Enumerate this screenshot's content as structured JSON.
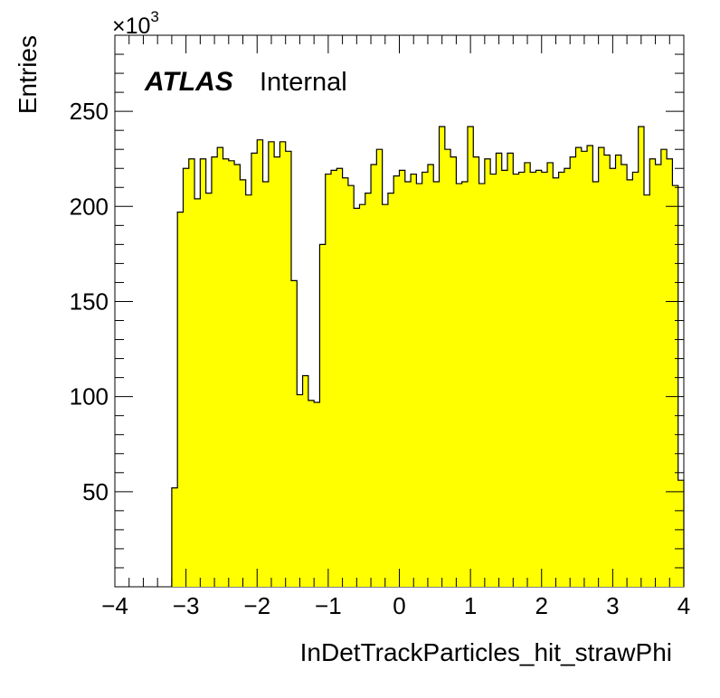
{
  "chart_data": {
    "type": "bar",
    "histogram": true,
    "xlabel": "InDetTrackParticles_hit_strawPhi",
    "ylabel": "Entries",
    "y_scale_label": {
      "base": "×10",
      "exponent": "3"
    },
    "annotation": {
      "bold": "ATLAS",
      "plain": "Internal"
    },
    "xlim": [
      -4,
      4
    ],
    "ylim": [
      0,
      290
    ],
    "x_ticks": [
      -4,
      -3,
      -2,
      -1,
      0,
      1,
      2,
      3,
      4
    ],
    "x_tick_labels": [
      "−4",
      "−3",
      "−2",
      "−1",
      "0",
      "1",
      "2",
      "3",
      "4"
    ],
    "y_ticks": [
      50,
      100,
      150,
      200,
      250
    ],
    "y_tick_labels": [
      "50",
      "100",
      "150",
      "200",
      "250"
    ],
    "fill_color": "#ffff00",
    "line_color": "#000000",
    "bin_start": -3.2,
    "bin_width": 0.08,
    "values": [
      52,
      197,
      220,
      225,
      204,
      225,
      207,
      226,
      231,
      225,
      224,
      222,
      214,
      206,
      228,
      235,
      213,
      234,
      226,
      234,
      229,
      161,
      101,
      111,
      98,
      97,
      180,
      217,
      219,
      220,
      215,
      211,
      199,
      201,
      207,
      222,
      230,
      201,
      207,
      216,
      219,
      213,
      217,
      212,
      218,
      222,
      213,
      242,
      230,
      226,
      212,
      213,
      242,
      226,
      212,
      225,
      217,
      228,
      219,
      228,
      217,
      218,
      223,
      218,
      219,
      218,
      223,
      215,
      218,
      220,
      226,
      231,
      229,
      232,
      213,
      231,
      227,
      220,
      227,
      222,
      214,
      218,
      242,
      206,
      225,
      222,
      230,
      225,
      211,
      56
    ]
  }
}
